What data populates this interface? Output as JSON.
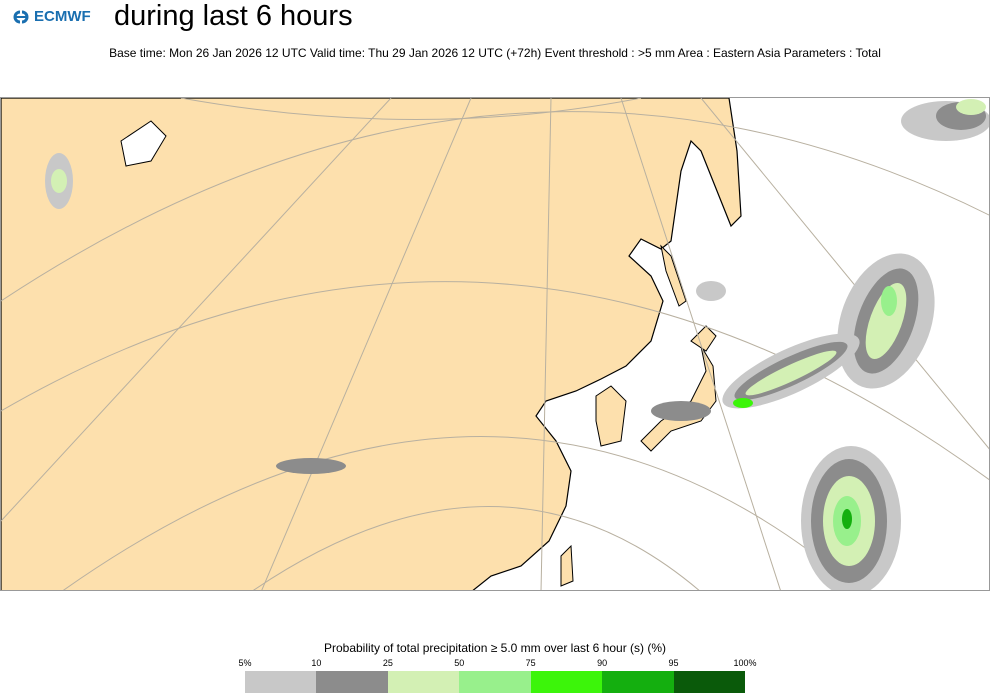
{
  "logo": {
    "text": "ECMWF"
  },
  "header": {
    "title": "during last 6 hours",
    "subtitle": "Base time: Mon 26 Jan 2026 12 UTC Valid time: Thu 29 Jan 2026 12 UTC (+72h) Event threshold : >5 mm Area : Eastern Asia Parameters : Total"
  },
  "colors": {
    "land": "#fde0ad",
    "ocean": "#ffffff",
    "graticule": "#b8b0a0",
    "coast": "#000000"
  },
  "legend": {
    "title": "Probability of total precipitation ≥ 5.0 mm over last 6 hour (s) (%)",
    "ticks": [
      "5%",
      "10",
      "25",
      "50",
      "75",
      "90",
      "95",
      "100%"
    ],
    "colors": [
      "#c8c8c8",
      "#8c8c8c",
      "#d3f0b4",
      "#98f08c",
      "#3cf50a",
      "#14af0f",
      "#0a5a0a"
    ]
  }
}
